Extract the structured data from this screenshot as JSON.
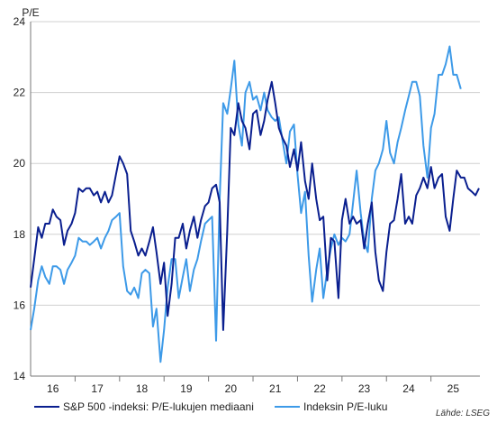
{
  "chart_data": {
    "type": "line",
    "ylabel": "P/E",
    "ylim": [
      14,
      24
    ],
    "yticks": [
      14,
      16,
      18,
      20,
      22,
      24
    ],
    "xlim": [
      2015.5,
      2025.6
    ],
    "xticks": [
      {
        "label": "16",
        "x": 2016
      },
      {
        "label": "17",
        "x": 2017
      },
      {
        "label": "18",
        "x": 2018
      },
      {
        "label": "19",
        "x": 2019
      },
      {
        "label": "20",
        "x": 2020
      },
      {
        "label": "21",
        "x": 2021
      },
      {
        "label": "22",
        "x": 2022
      },
      {
        "label": "23",
        "x": 2023
      },
      {
        "label": "24",
        "x": 2024
      },
      {
        "label": "25",
        "x": 2025
      }
    ],
    "grid": "horizontal",
    "legend": "bottom",
    "source": "Lähde: LSEG",
    "series": [
      {
        "name": "S&P 500 -indeksi: P/E-lukujen mediaani",
        "color": "#0a1f8f",
        "points": [
          [
            2015.5,
            16.5
          ],
          [
            2015.58,
            17.3
          ],
          [
            2015.67,
            18.2
          ],
          [
            2015.75,
            17.9
          ],
          [
            2015.83,
            18.3
          ],
          [
            2015.92,
            18.3
          ],
          [
            2016.0,
            18.7
          ],
          [
            2016.08,
            18.5
          ],
          [
            2016.17,
            18.4
          ],
          [
            2016.25,
            17.7
          ],
          [
            2016.33,
            18.1
          ],
          [
            2016.42,
            18.3
          ],
          [
            2016.5,
            18.6
          ],
          [
            2016.58,
            19.3
          ],
          [
            2016.67,
            19.2
          ],
          [
            2016.75,
            19.3
          ],
          [
            2016.83,
            19.3
          ],
          [
            2016.92,
            19.1
          ],
          [
            2017.0,
            19.2
          ],
          [
            2017.08,
            18.9
          ],
          [
            2017.17,
            19.2
          ],
          [
            2017.25,
            18.9
          ],
          [
            2017.33,
            19.1
          ],
          [
            2017.42,
            19.7
          ],
          [
            2017.5,
            20.2
          ],
          [
            2017.58,
            20.0
          ],
          [
            2017.67,
            19.7
          ],
          [
            2017.75,
            18.1
          ],
          [
            2017.83,
            17.8
          ],
          [
            2017.92,
            17.4
          ],
          [
            2018.0,
            17.6
          ],
          [
            2018.08,
            17.4
          ],
          [
            2018.17,
            17.8
          ],
          [
            2018.25,
            18.2
          ],
          [
            2018.33,
            17.5
          ],
          [
            2018.42,
            16.6
          ],
          [
            2018.5,
            17.2
          ],
          [
            2018.58,
            15.7
          ],
          [
            2018.67,
            16.6
          ],
          [
            2018.75,
            17.9
          ],
          [
            2018.83,
            17.9
          ],
          [
            2018.92,
            18.3
          ],
          [
            2019.0,
            17.6
          ],
          [
            2019.08,
            18.1
          ],
          [
            2019.17,
            18.5
          ],
          [
            2019.25,
            17.9
          ],
          [
            2019.33,
            18.4
          ],
          [
            2019.42,
            18.8
          ],
          [
            2019.5,
            18.9
          ],
          [
            2019.58,
            19.3
          ],
          [
            2019.67,
            19.4
          ],
          [
            2019.75,
            18.9
          ],
          [
            2019.83,
            15.3
          ],
          [
            2019.92,
            18.1
          ],
          [
            2020.0,
            21.0
          ],
          [
            2020.08,
            20.8
          ],
          [
            2020.17,
            21.7
          ],
          [
            2020.25,
            21.2
          ],
          [
            2020.33,
            21.0
          ],
          [
            2020.42,
            20.4
          ],
          [
            2020.5,
            21.4
          ],
          [
            2020.58,
            21.5
          ],
          [
            2020.67,
            20.8
          ],
          [
            2020.75,
            21.2
          ],
          [
            2020.83,
            21.8
          ],
          [
            2020.92,
            22.3
          ],
          [
            2021.0,
            21.7
          ],
          [
            2021.08,
            21.0
          ],
          [
            2021.17,
            20.7
          ],
          [
            2021.25,
            20.5
          ],
          [
            2021.33,
            19.9
          ],
          [
            2021.42,
            20.4
          ],
          [
            2021.5,
            19.8
          ],
          [
            2021.58,
            20.6
          ],
          [
            2021.67,
            19.5
          ],
          [
            2021.75,
            19.0
          ],
          [
            2021.83,
            20.0
          ],
          [
            2021.92,
            19.0
          ],
          [
            2022.0,
            18.4
          ],
          [
            2022.08,
            18.5
          ],
          [
            2022.17,
            16.7
          ],
          [
            2022.25,
            17.9
          ],
          [
            2022.33,
            17.8
          ],
          [
            2022.42,
            16.2
          ],
          [
            2022.5,
            18.4
          ],
          [
            2022.58,
            19.0
          ],
          [
            2022.67,
            18.3
          ],
          [
            2022.75,
            18.5
          ],
          [
            2022.83,
            18.3
          ],
          [
            2022.92,
            18.4
          ],
          [
            2023.0,
            17.6
          ],
          [
            2023.08,
            18.3
          ],
          [
            2023.17,
            18.9
          ],
          [
            2023.25,
            17.5
          ],
          [
            2023.33,
            16.7
          ],
          [
            2023.42,
            16.4
          ],
          [
            2023.5,
            17.5
          ],
          [
            2023.58,
            18.3
          ],
          [
            2023.67,
            18.4
          ],
          [
            2023.75,
            19.0
          ],
          [
            2023.83,
            19.7
          ],
          [
            2023.92,
            18.3
          ],
          [
            2024.0,
            18.5
          ],
          [
            2024.08,
            18.3
          ],
          [
            2024.17,
            19.1
          ],
          [
            2024.25,
            19.3
          ],
          [
            2024.33,
            19.6
          ],
          [
            2024.42,
            19.3
          ],
          [
            2024.5,
            19.9
          ],
          [
            2024.58,
            19.3
          ],
          [
            2024.67,
            19.6
          ],
          [
            2024.75,
            19.7
          ],
          [
            2024.83,
            18.5
          ],
          [
            2024.92,
            18.1
          ],
          [
            2025.0,
            19.0
          ],
          [
            2025.08,
            19.8
          ],
          [
            2025.17,
            19.6
          ],
          [
            2025.25,
            19.6
          ],
          [
            2025.33,
            19.3
          ],
          [
            2025.42,
            19.2
          ],
          [
            2025.5,
            19.1
          ],
          [
            2025.58,
            19.3
          ]
        ]
      },
      {
        "name": "Indeksin P/E-luku",
        "color": "#3d9ae8",
        "points": [
          [
            2015.5,
            15.3
          ],
          [
            2015.58,
            15.9
          ],
          [
            2015.67,
            16.7
          ],
          [
            2015.75,
            17.1
          ],
          [
            2015.83,
            16.8
          ],
          [
            2015.92,
            16.6
          ],
          [
            2016.0,
            17.1
          ],
          [
            2016.08,
            17.1
          ],
          [
            2016.17,
            17.0
          ],
          [
            2016.25,
            16.6
          ],
          [
            2016.33,
            17.0
          ],
          [
            2016.42,
            17.2
          ],
          [
            2016.5,
            17.4
          ],
          [
            2016.58,
            17.9
          ],
          [
            2016.67,
            17.8
          ],
          [
            2016.75,
            17.8
          ],
          [
            2016.83,
            17.7
          ],
          [
            2016.92,
            17.8
          ],
          [
            2017.0,
            17.9
          ],
          [
            2017.08,
            17.6
          ],
          [
            2017.17,
            17.9
          ],
          [
            2017.25,
            18.1
          ],
          [
            2017.33,
            18.4
          ],
          [
            2017.42,
            18.5
          ],
          [
            2017.5,
            18.6
          ],
          [
            2017.58,
            17.1
          ],
          [
            2017.67,
            16.4
          ],
          [
            2017.75,
            16.3
          ],
          [
            2017.83,
            16.5
          ],
          [
            2017.92,
            16.2
          ],
          [
            2018.0,
            16.9
          ],
          [
            2018.08,
            17.0
          ],
          [
            2018.17,
            16.9
          ],
          [
            2018.25,
            15.4
          ],
          [
            2018.33,
            15.9
          ],
          [
            2018.42,
            14.4
          ],
          [
            2018.5,
            15.3
          ],
          [
            2018.58,
            16.5
          ],
          [
            2018.67,
            17.3
          ],
          [
            2018.75,
            17.3
          ],
          [
            2018.83,
            16.2
          ],
          [
            2018.92,
            16.8
          ],
          [
            2019.0,
            17.3
          ],
          [
            2019.08,
            16.4
          ],
          [
            2019.17,
            17.0
          ],
          [
            2019.25,
            17.3
          ],
          [
            2019.33,
            17.8
          ],
          [
            2019.42,
            18.3
          ],
          [
            2019.5,
            18.4
          ],
          [
            2019.58,
            18.5
          ],
          [
            2019.67,
            15.0
          ],
          [
            2019.75,
            19.0
          ],
          [
            2019.83,
            21.7
          ],
          [
            2019.92,
            21.4
          ],
          [
            2020.0,
            22.1
          ],
          [
            2020.08,
            22.9
          ],
          [
            2020.17,
            21.1
          ],
          [
            2020.25,
            20.5
          ],
          [
            2020.33,
            22.0
          ],
          [
            2020.42,
            22.3
          ],
          [
            2020.5,
            21.8
          ],
          [
            2020.58,
            21.9
          ],
          [
            2020.67,
            21.5
          ],
          [
            2020.75,
            22.0
          ],
          [
            2020.83,
            21.5
          ],
          [
            2020.92,
            21.3
          ],
          [
            2021.0,
            21.2
          ],
          [
            2021.08,
            21.3
          ],
          [
            2021.17,
            20.6
          ],
          [
            2021.25,
            20.0
          ],
          [
            2021.33,
            20.9
          ],
          [
            2021.42,
            21.1
          ],
          [
            2021.5,
            19.7
          ],
          [
            2021.58,
            18.6
          ],
          [
            2021.67,
            19.2
          ],
          [
            2021.75,
            17.4
          ],
          [
            2021.83,
            16.1
          ],
          [
            2021.92,
            17.0
          ],
          [
            2022.0,
            17.6
          ],
          [
            2022.08,
            16.2
          ],
          [
            2022.17,
            17.0
          ],
          [
            2022.25,
            17.6
          ],
          [
            2022.33,
            18.0
          ],
          [
            2022.42,
            17.7
          ],
          [
            2022.5,
            17.9
          ],
          [
            2022.58,
            17.8
          ],
          [
            2022.67,
            18.0
          ],
          [
            2022.75,
            18.9
          ],
          [
            2022.83,
            19.8
          ],
          [
            2022.92,
            18.6
          ],
          [
            2023.0,
            17.8
          ],
          [
            2023.08,
            17.5
          ],
          [
            2023.17,
            19.0
          ],
          [
            2023.25,
            19.8
          ],
          [
            2023.33,
            20.0
          ],
          [
            2023.42,
            20.4
          ],
          [
            2023.5,
            21.2
          ],
          [
            2023.58,
            20.3
          ],
          [
            2023.67,
            20.0
          ],
          [
            2023.75,
            20.6
          ],
          [
            2023.83,
            21.0
          ],
          [
            2023.92,
            21.5
          ],
          [
            2024.0,
            21.9
          ],
          [
            2024.08,
            22.3
          ],
          [
            2024.17,
            22.3
          ],
          [
            2024.25,
            21.9
          ],
          [
            2024.33,
            20.5
          ],
          [
            2024.42,
            19.6
          ],
          [
            2024.5,
            21.0
          ],
          [
            2024.58,
            21.4
          ],
          [
            2024.67,
            22.5
          ],
          [
            2024.75,
            22.5
          ],
          [
            2024.83,
            22.8
          ],
          [
            2024.92,
            23.3
          ],
          [
            2025.0,
            22.5
          ],
          [
            2025.08,
            22.5
          ],
          [
            2025.17,
            22.1
          ]
        ]
      }
    ]
  }
}
